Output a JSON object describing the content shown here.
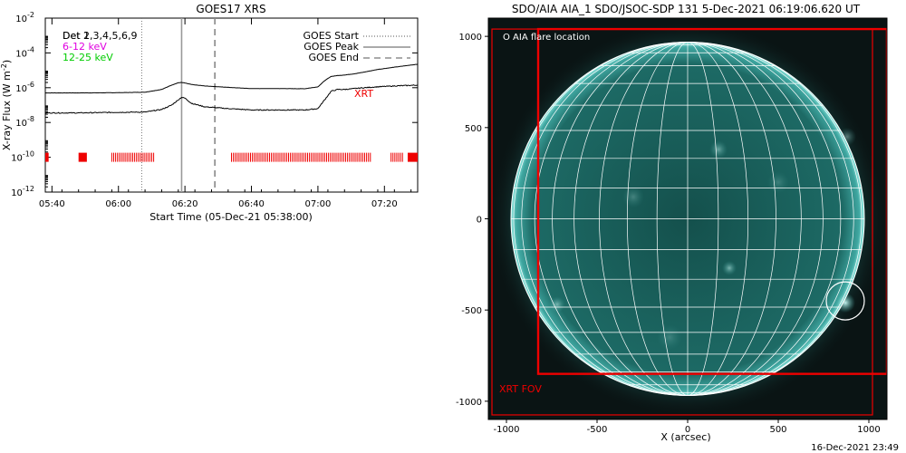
{
  "colors": {
    "goes_long": "#000000",
    "goes_short": "#000000",
    "rhessi_6_12": "#e000e0",
    "rhessi_12_25": "#00cc00",
    "xrt_bars": "#ee0000",
    "xrt_fov": "#ee0000",
    "flare_circle": "#ffffff",
    "grid": "#ffffff",
    "sun_fill": "#1f6f6a",
    "sky": "#0a1414"
  },
  "chart_data": [
    {
      "type": "line",
      "title": "GOES17 XRS",
      "xlabel": "Start Time (05-Dec-21 05:38:00)",
      "ylabel": "X-ray Flux (W m",
      "ylabel_sup": "-2",
      "ylabel_close": ")",
      "ylog": true,
      "xlim_minutes": [
        0,
        112
      ],
      "ylim": [
        1e-12,
        0.01
      ],
      "x_ticks": [
        {
          "minute": 2,
          "label": "05:40"
        },
        {
          "minute": 22,
          "label": "06:00"
        },
        {
          "minute": 42,
          "label": "06:20"
        },
        {
          "minute": 62,
          "label": "06:40"
        },
        {
          "minute": 82,
          "label": "07:00"
        },
        {
          "minute": 102,
          "label": "07:20"
        }
      ],
      "y_ticks": [
        {
          "exp": -2,
          "label": "10",
          "sup": "-2"
        },
        {
          "exp": -4,
          "label": "10",
          "sup": "-4"
        },
        {
          "exp": -6,
          "label": "10",
          "sup": "-6"
        },
        {
          "exp": -8,
          "label": "10",
          "sup": "-8"
        },
        {
          "exp": -10,
          "label": "10",
          "sup": "-10"
        },
        {
          "exp": -12,
          "label": "10",
          "sup": "-12"
        }
      ],
      "series": [
        {
          "key": "long",
          "minutes": [
            0,
            10,
            20,
            30,
            35,
            38,
            40,
            41,
            42,
            44,
            48,
            55,
            62,
            70,
            78,
            82,
            84,
            86,
            88,
            90,
            93,
            96,
            100,
            105,
            112
          ],
          "exp": [
            -6.3,
            -6.3,
            -6.29,
            -6.26,
            -6.1,
            -5.85,
            -5.72,
            -5.7,
            -5.73,
            -5.82,
            -5.9,
            -5.98,
            -6.05,
            -6.05,
            -6.06,
            -5.95,
            -5.6,
            -5.35,
            -5.3,
            -5.27,
            -5.2,
            -5.1,
            -4.95,
            -4.82,
            -4.65
          ]
        },
        {
          "key": "short",
          "minutes": [
            0,
            10,
            20,
            30,
            35,
            38,
            40,
            41,
            42,
            44,
            48,
            55,
            62,
            70,
            78,
            82,
            84,
            86,
            88,
            90,
            93,
            96,
            100,
            105,
            112
          ],
          "exp": [
            -7.45,
            -7.45,
            -7.42,
            -7.4,
            -7.25,
            -7.0,
            -6.7,
            -6.55,
            -6.6,
            -6.9,
            -7.1,
            -7.2,
            -7.28,
            -7.28,
            -7.28,
            -7.2,
            -6.7,
            -6.2,
            -6.1,
            -6.1,
            -6.05,
            -6.0,
            -5.95,
            -5.9,
            -5.85
          ]
        }
      ],
      "event_lines": [
        {
          "label": "GOES Start",
          "minute": 29
        },
        {
          "label": "GOES Peak",
          "minute": 41
        },
        {
          "label": "GOES End",
          "minute": 51
        }
      ],
      "xrt_segments_minutes": [
        [
          0,
          1
        ],
        [
          10,
          12.5
        ],
        [
          20,
          33
        ],
        [
          56,
          98
        ],
        [
          104,
          108
        ],
        [
          109,
          112
        ]
      ],
      "xrt_label": "XRT",
      "legend": {
        "det_line": "Det 1,3,4,5,6,9",
        "det_overlap": "Det 2",
        "energy_6_12": "6-12 keV",
        "energy_12_25": "12-25 keV"
      }
    },
    {
      "type": "image",
      "title": "SDO/AIA AIA_1 SDO/JSOC-SDP 131  5-Dec-2021 06:19:06.620 UT",
      "xlabel": "X (arcsec)",
      "xlim": [
        -1100,
        1100
      ],
      "ylim": [
        -1100,
        1100
      ],
      "solar_radius_arcsec": 975,
      "x_ticks": [
        -1000,
        -500,
        0,
        500,
        1000
      ],
      "y_ticks": [
        1000,
        500,
        0,
        -500,
        -1000
      ],
      "grid_spacing_deg": 10,
      "flare_location": {
        "x": 870,
        "y": -450,
        "radius": 105
      },
      "flare_legend": "O AIA flare location",
      "xrt_fov": [
        {
          "x0": -1080,
          "y0": -1075,
          "x1": 1020,
          "y1": 1040
        },
        {
          "x0": -825,
          "y0": -850,
          "x1": 1100,
          "y1": 1040
        }
      ],
      "xrt_fov_label": "XRT FOV"
    }
  ],
  "footer_timestamp": "16-Dec-2021 23:49"
}
